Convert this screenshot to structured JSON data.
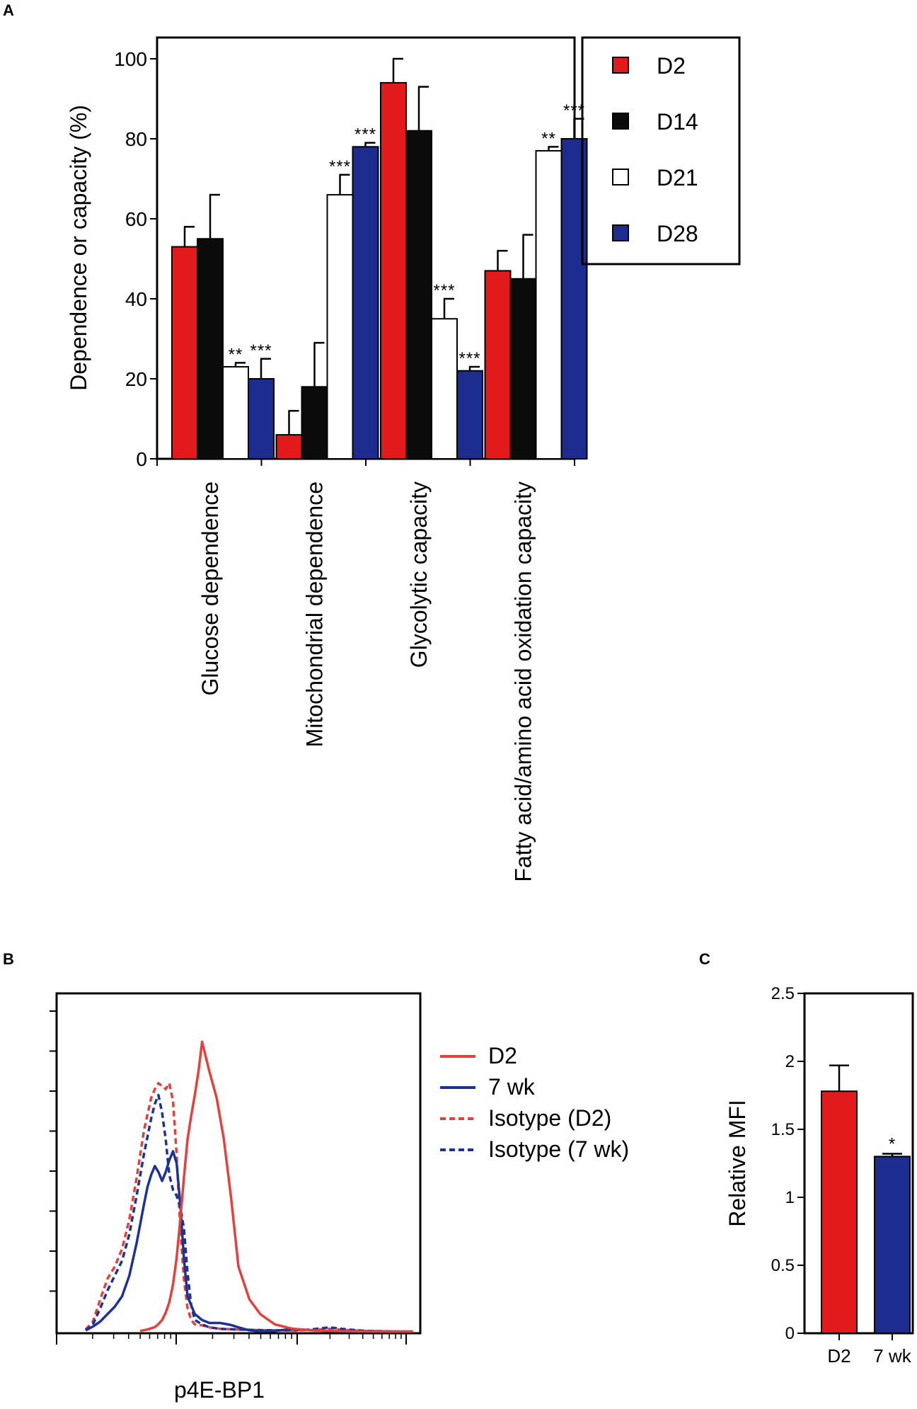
{
  "panels": {
    "a": "A",
    "b": "B",
    "c": "C"
  },
  "colors": {
    "D2": "#e31a1c",
    "D14": "#0b0b0b",
    "D21": "#ffffff",
    "D28": "#1c2d8f",
    "black": "#000000"
  },
  "chart_data": [
    {
      "id": "A",
      "type": "bar",
      "ylabel": "Dependence or capacity (%)",
      "ylim": [
        0,
        100
      ],
      "yticks": [
        "0",
        "20",
        "40",
        "60",
        "80",
        "100"
      ],
      "categories": [
        "Glucose dependence",
        "Mitochondrial dependence",
        "Glycolytic capacity",
        "Fatty acid/amino acid oxidation capacity"
      ],
      "series": [
        {
          "name": "D2",
          "values": [
            53,
            6,
            94,
            47
          ],
          "errors": [
            5,
            6,
            6,
            5
          ],
          "sig": [
            "",
            "",
            "",
            ""
          ]
        },
        {
          "name": "D14",
          "values": [
            55,
            18,
            82,
            45
          ],
          "errors": [
            11,
            11,
            11,
            11
          ],
          "sig": [
            "",
            "",
            "",
            ""
          ]
        },
        {
          "name": "D21",
          "values": [
            23,
            66,
            35,
            77
          ],
          "errors": [
            1,
            5,
            5,
            1
          ],
          "sig": [
            "**",
            "***",
            "***",
            "**"
          ]
        },
        {
          "name": "D28",
          "values": [
            20,
            78,
            22,
            80
          ],
          "errors": [
            5,
            1,
            1,
            5
          ],
          "sig": [
            "***",
            "***",
            "***",
            "***"
          ]
        }
      ],
      "legend": [
        "D2",
        "D14",
        "D21",
        "D28"
      ],
      "legend_position": "right"
    },
    {
      "id": "B",
      "type": "line",
      "xlabel": "p4E-BP1",
      "ylabel": "",
      "xscale": "log",
      "xlim": [
        0,
        100
      ],
      "ylim": [
        0,
        100
      ],
      "series": [
        {
          "name": "D2",
          "style": "solid",
          "color": "#e3413b",
          "x": [
            23,
            25,
            27,
            28,
            29,
            30,
            31,
            32,
            33,
            34,
            35,
            36,
            37,
            38,
            39,
            40,
            42,
            44,
            46,
            48,
            50,
            53,
            56,
            60,
            65,
            70,
            75,
            80,
            85,
            90,
            95,
            98
          ],
          "y": [
            0.3,
            0.8,
            1.6,
            2.6,
            4,
            6.5,
            10,
            16,
            25,
            38,
            52,
            65,
            73,
            80,
            88,
            98,
            88,
            79,
            65,
            45,
            22,
            11,
            6,
            2.5,
            1,
            0.5,
            0.3,
            0.2,
            0.15,
            0.1,
            0.1,
            0.1
          ]
        },
        {
          "name": "7 wk",
          "style": "solid",
          "color": "#1c3394",
          "x": [
            8,
            10,
            12,
            14,
            16,
            18,
            20,
            22,
            24,
            25,
            26,
            27,
            28,
            29,
            30,
            31,
            32,
            33,
            34,
            35,
            36,
            38,
            40,
            42,
            45,
            48,
            50,
            53,
            56,
            60,
            65,
            70,
            75,
            80,
            85,
            90,
            95,
            98
          ],
          "y": [
            0.5,
            1.8,
            3.5,
            6,
            8.5,
            12,
            19,
            30,
            43,
            49,
            53,
            56,
            54,
            51,
            54,
            58,
            61,
            57,
            43,
            25,
            12,
            6,
            4,
            3,
            3,
            2.3,
            1.5,
            0.5,
            0.2,
            0.3,
            1,
            0.5,
            0.3,
            0.2,
            0.1,
            0.1,
            0.1,
            0.1
          ]
        },
        {
          "name": "Isotype (D2)",
          "style": "dashed",
          "color": "#e3413b",
          "x": [
            8,
            10,
            12,
            14,
            16,
            18,
            20,
            22,
            24,
            26,
            27,
            28,
            29,
            30,
            31,
            32,
            33,
            34,
            35,
            36,
            37,
            38,
            40,
            42,
            45,
            50,
            55,
            60,
            65,
            70,
            75,
            80,
            85,
            90,
            95,
            98
          ],
          "y": [
            0.8,
            3.5,
            11,
            18,
            22,
            28,
            38,
            52,
            68,
            79,
            82,
            84,
            83,
            82,
            84,
            78,
            60,
            35,
            18,
            8,
            4,
            2.5,
            2.2,
            1.5,
            1,
            0.8,
            0.6,
            0.5,
            0.4,
            0.6,
            1,
            0.6,
            0.3,
            0.2,
            0.1,
            0.1
          ]
        },
        {
          "name": "Isotype (7 wk)",
          "style": "dashed",
          "color": "#1c3394",
          "x": [
            8,
            10,
            12,
            14,
            16,
            18,
            20,
            22,
            24,
            26,
            27,
            28,
            29,
            30,
            31,
            32,
            33,
            34,
            35,
            36,
            37,
            38,
            40,
            42,
            45,
            50,
            55,
            60,
            65,
            70,
            75,
            80,
            85,
            90,
            95,
            98
          ],
          "y": [
            0.5,
            2.5,
            8,
            14,
            19,
            24,
            33,
            46,
            60,
            72,
            77,
            80,
            74,
            65,
            53,
            48,
            46,
            42,
            35,
            20,
            9,
            4,
            2.5,
            1.5,
            1,
            0.8,
            0.6,
            0.5,
            0.5,
            0.8,
            1.5,
            0.8,
            0.3,
            0.2,
            0.1,
            0.1
          ]
        }
      ],
      "legend": [
        "D2",
        "7 wk",
        "Isotype (D2)",
        "Isotype (7 wk)"
      ],
      "legend_position": "right"
    },
    {
      "id": "C",
      "type": "bar",
      "ylabel": "Relative MFI",
      "ylim": [
        0,
        2.5
      ],
      "yticks": [
        "0",
        "0.5",
        "1",
        "1.5",
        "2",
        "2.5"
      ],
      "categories": [
        "D2",
        "7 wk"
      ],
      "values": [
        1.78,
        1.3
      ],
      "errors": [
        0.19,
        0.02
      ],
      "bar_colors": [
        "#e31a1c",
        "#1c2d8f"
      ],
      "sig": [
        "",
        "*"
      ]
    }
  ]
}
